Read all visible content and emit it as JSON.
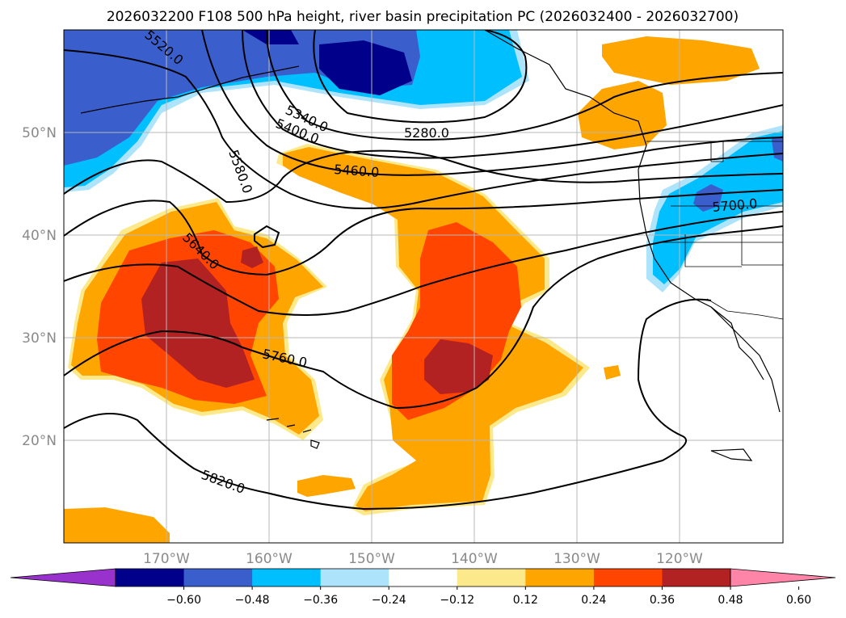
{
  "title": "2026032200 F108 500 hPa height, river basin precipitation PC (2026032400 - 2026032700)",
  "map": {
    "lat_labels": [
      "20°N",
      "30°N",
      "40°N",
      "50°N"
    ],
    "lon_labels": [
      "170°W",
      "160°W",
      "150°W",
      "140°W",
      "130°W",
      "120°W"
    ],
    "extent": {
      "lon": [
        -180,
        -110
      ],
      "lat": [
        10,
        60
      ]
    },
    "contour_labels": [
      "5280.0",
      "5340.0",
      "5400.0",
      "5460.0",
      "5520.0",
      "5580.0",
      "5640.0",
      "5700.0",
      "5760.0",
      "5820.0"
    ]
  },
  "colorbar": {
    "ticks": [
      "−0.60",
      "−0.48",
      "−0.36",
      "−0.24",
      "−0.12",
      "0.12",
      "0.24",
      "0.36",
      "0.48",
      "0.60"
    ],
    "colors": [
      "#9932cc",
      "#00008b",
      "#3a5fcd",
      "#00bfff",
      "#aee4fb",
      "#ffffff",
      "#fce98c",
      "#ffa500",
      "#ff4500",
      "#b22222",
      "#ff85a8"
    ]
  }
}
